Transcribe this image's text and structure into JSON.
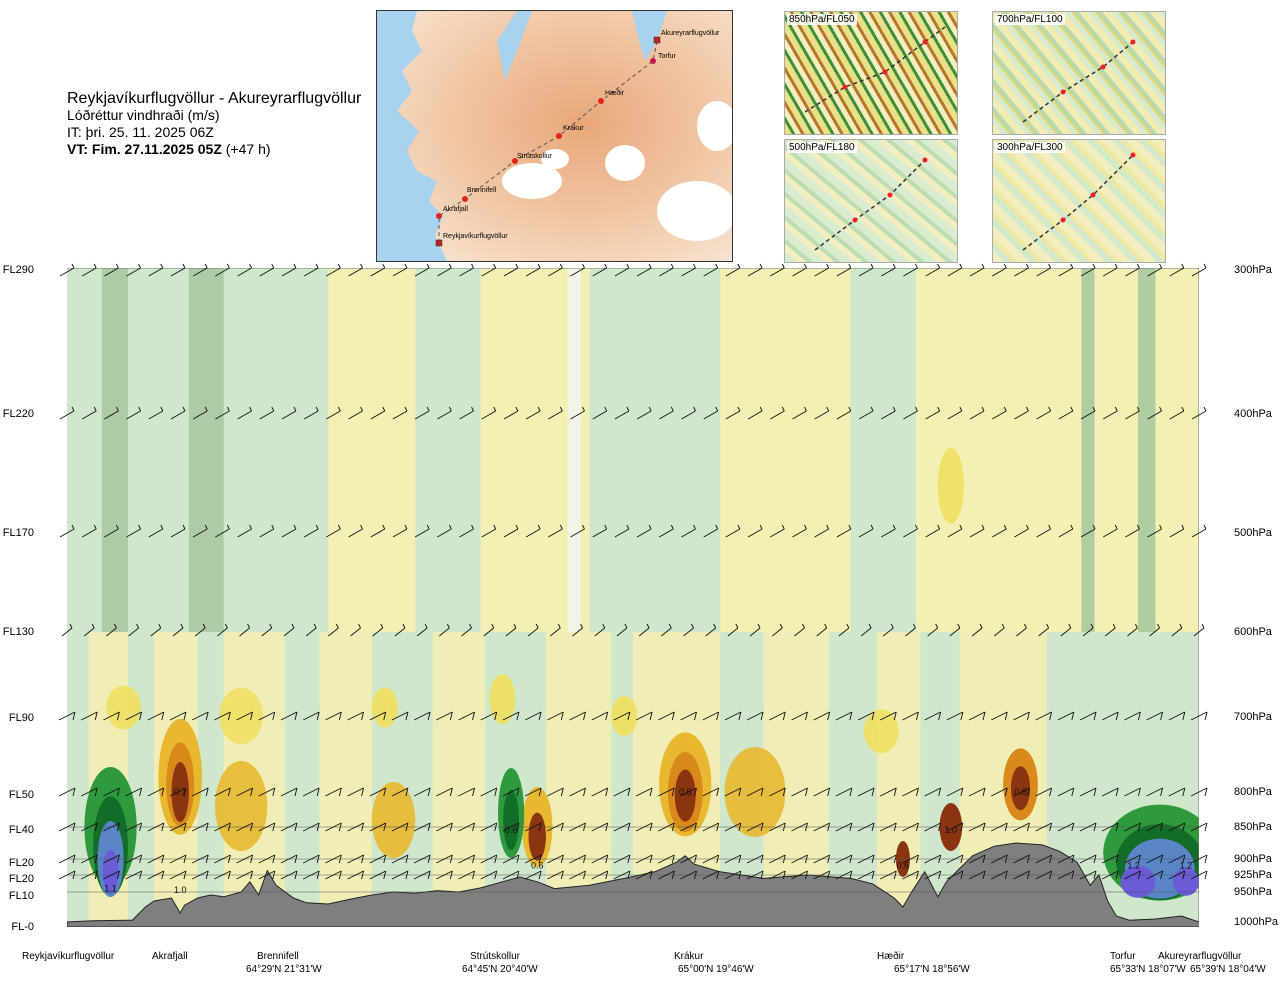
{
  "header": {
    "route": "Reykjavíkurflugvöllur - Akureyrarflugvöllur",
    "variable": "Lóðréttur vindhraði (m/s)",
    "init_time": "IT: þri. 25. 11. 2025 06Z",
    "valid_time": "VT: Fim. 27.11.2025 05Z",
    "lead_time": "(+47 h)"
  },
  "map": {
    "waypoints": [
      {
        "label": "Akureyrarflugvöllur"
      },
      {
        "label": "Torfur"
      },
      {
        "label": "Hæðir"
      },
      {
        "label": "Krákur"
      },
      {
        "label": "Strútskollur"
      },
      {
        "label": "Brennifell"
      },
      {
        "label": "Akrafjall"
      },
      {
        "label": "Reykjavíkurflugvöllur"
      }
    ]
  },
  "thumbnails": [
    {
      "label": "850hPa/FL050"
    },
    {
      "label": "700hPa/FL100"
    },
    {
      "label": "500hPa/FL180"
    },
    {
      "label": "300hPa/FL300"
    }
  ],
  "chart_data": {
    "type": "heatmap",
    "title": "Reykjavíkurflugvöllur - Akureyrarflugvöllur",
    "subtitle": "Lóðréttur vindhraði (m/s)",
    "flight_levels": [
      "FL290",
      "FL220",
      "FL170",
      "FL130",
      "FL90",
      "FL50",
      "FL40",
      "FL20",
      "FL20",
      "FL10",
      "FL-0"
    ],
    "pressure_levels": [
      "300hPa",
      "400hPa",
      "500hPa",
      "600hPa",
      "700hPa",
      "800hPa",
      "850hPa",
      "900hPa",
      "925hPa",
      "950hPa",
      "1000hPa"
    ],
    "pressure_values_hpa": [
      300,
      400,
      500,
      600,
      700,
      800,
      850,
      900,
      925,
      950,
      1000
    ],
    "ylim_hpa": [
      1000,
      300
    ],
    "xlim_km": [
      0,
      260
    ],
    "x_sites": [
      {
        "name": "Reykjavíkurflugvöllur",
        "coord": "",
        "km": 0
      },
      {
        "name": "Akrafjall",
        "coord": "",
        "km": 22
      },
      {
        "name": "Brennifell",
        "coord": "64°29'N 21°31'W",
        "km": 47
      },
      {
        "name": "Strútskollur",
        "coord": "64°45'N 20°40'W",
        "km": 98
      },
      {
        "name": "Krákur",
        "coord": "65°00'N 19°46'W",
        "km": 142
      },
      {
        "name": "Hæðir",
        "coord": "65°17'N 18°56'W",
        "km": 193
      },
      {
        "name": "Torfur",
        "coord": "65°33'N 18°07'W",
        "km": 242
      },
      {
        "name": "Akureyrarflugvöllur",
        "coord": "65°39'N 18°04'W",
        "km": 255
      }
    ],
    "max_labels": [
      {
        "km": 10,
        "hpa": 945,
        "text": "1.1"
      },
      {
        "km": 26,
        "hpa": 947,
        "text": "1.0"
      },
      {
        "km": 26,
        "hpa": 800,
        "text": "0.7"
      },
      {
        "km": 102,
        "hpa": 855,
        "text": "0.6"
      },
      {
        "km": 108,
        "hpa": 910,
        "text": "0.6"
      },
      {
        "km": 142,
        "hpa": 800,
        "text": "0.6"
      },
      {
        "km": 192,
        "hpa": 910,
        "text": "0.6"
      },
      {
        "km": 203,
        "hpa": 855,
        "text": "1.0"
      },
      {
        "km": 219,
        "hpa": 800,
        "text": "0.8"
      },
      {
        "km": 245,
        "hpa": 910,
        "text": "1.2"
      },
      {
        "km": 257,
        "hpa": 910,
        "text": "1.2"
      }
    ],
    "colors": {
      "neg_strong": "#a8c8a0",
      "neg": "#cfe8cc",
      "near_zero": "#f0f6e8",
      "pos_weak": "#f7efb0",
      "pos": "#eedf60",
      "pos_mid": "#e7b830",
      "pos_high": "#d88a1c",
      "pos_max": "#8a3410",
      "asc_green": "#2f9a3c",
      "asc_dark": "#116d27",
      "asc_blue": "#5a86c8",
      "asc_violet": "#6b5bd6",
      "terrain": "#7f7f7f"
    }
  }
}
